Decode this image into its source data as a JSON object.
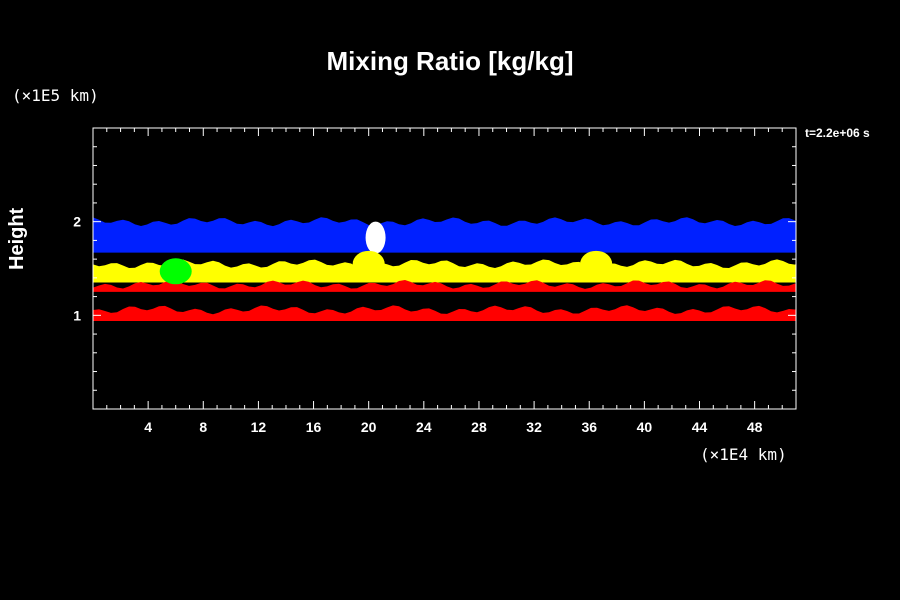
{
  "chart_data": {
    "type": "heatmap",
    "title": "Mixing Ratio [kg/kg]",
    "ylabel": "Height",
    "y_unit": "(×1E5 km)",
    "x_unit": "(×1E4 km)",
    "time_label": "t=2.2e+06 s",
    "xlim": [
      0,
      51
    ],
    "ylim": [
      0,
      3
    ],
    "x_ticks": [
      4,
      8,
      12,
      16,
      20,
      24,
      28,
      32,
      36,
      40,
      44,
      48
    ],
    "y_ticks": [
      1,
      2
    ],
    "bands": [
      {
        "color": "#0020ff",
        "y_min": 1.67,
        "y_max": 2.0
      },
      {
        "color": "#ffff00",
        "y_min": 1.35,
        "y_max": 1.55
      },
      {
        "color": "#ff0000",
        "y_min": 1.25,
        "y_max": 1.33
      },
      {
        "color": "#ff0000",
        "y_min": 0.94,
        "y_max": 1.06
      }
    ],
    "features": [
      {
        "color": "#ffffff",
        "x": 20.5,
        "y": 1.83
      },
      {
        "color": "#ffff00",
        "x": 20.0,
        "y": 1.55
      },
      {
        "color": "#ffff00",
        "x": 36.5,
        "y": 1.55
      },
      {
        "color": "#00ff00",
        "x": 6.0,
        "y": 1.47
      }
    ]
  }
}
